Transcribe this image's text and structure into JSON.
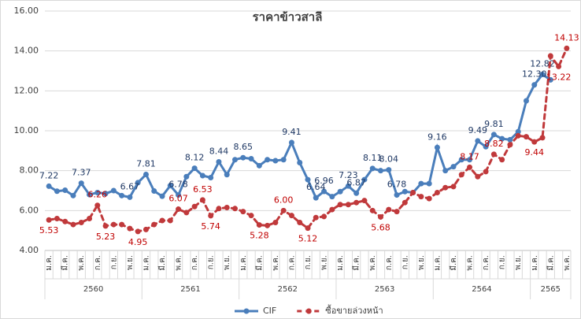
{
  "chart_data": {
    "type": "line",
    "title": "ราคาข้าวสาลี",
    "categories": [
      "ม.ค.",
      null,
      "มี.ค.",
      null,
      "พ.ค.",
      null,
      "ก.ค.",
      null,
      "ก.ย.",
      null,
      "พ.ย.",
      null,
      "ม.ค.",
      null,
      "มี.ค.",
      null,
      "พ.ค.",
      null,
      "ก.ค.",
      null,
      "ก.ย.",
      null,
      "พ.ย.",
      null,
      "ม.ค.",
      null,
      "มี.ค.",
      null,
      "พ.ค.",
      null,
      "ก.ค.",
      null,
      "ก.ย.",
      null,
      "พ.ย.",
      null,
      "ม.ค.",
      null,
      "มี.ค.",
      null,
      "พ.ค.",
      null,
      "ก.ค.",
      null,
      "ก.ย.",
      null,
      "พ.ย.",
      null,
      "ม.ค.",
      null,
      "มี.ค.",
      null,
      "พ.ค.",
      null,
      "ก.ค.",
      null,
      "ก.ย.",
      null,
      "พ.ย.",
      null,
      "ม.ค.",
      null,
      "มี.ค.",
      null,
      "พ.ค."
    ],
    "years": [
      "2560",
      "2561",
      "2562",
      "2563",
      "2564",
      "2565"
    ],
    "series": [
      {
        "name": "CIF",
        "color": "#4a7ebb",
        "label_color": "#1f3864",
        "dashed": false,
        "values": [
          7.22,
          6.97,
          7.02,
          6.75,
          7.37,
          6.8,
          6.9,
          6.85,
          7.0,
          6.75,
          6.67,
          7.4,
          7.81,
          6.98,
          6.72,
          7.25,
          6.78,
          7.7,
          8.12,
          7.75,
          7.65,
          8.44,
          7.8,
          8.55,
          8.65,
          8.6,
          8.25,
          8.55,
          8.5,
          8.55,
          9.41,
          8.4,
          7.55,
          6.64,
          6.96,
          6.7,
          6.95,
          7.23,
          6.87,
          7.55,
          8.11,
          8.0,
          8.04,
          6.78,
          6.95,
          6.9,
          7.35,
          7.35,
          9.16,
          8.0,
          8.2,
          8.55,
          8.55,
          9.49,
          9.2,
          9.81,
          9.6,
          9.55,
          9.95,
          11.5,
          12.3,
          12.82,
          12.55,
          null,
          null
        ],
        "value_labels": [
          "7.22",
          null,
          null,
          null,
          "7.37",
          null,
          null,
          null,
          null,
          null,
          "6.67",
          null,
          "7.81",
          null,
          null,
          null,
          "6.78",
          null,
          "8.12",
          null,
          null,
          "8.44",
          null,
          null,
          "8.65",
          null,
          null,
          null,
          null,
          null,
          "9.41",
          null,
          null,
          "6.64",
          "6.96",
          null,
          null,
          "7.23",
          "6.87",
          null,
          "8.11",
          null,
          "8.04",
          "6.78",
          null,
          null,
          null,
          null,
          "9.16",
          null,
          null,
          null,
          null,
          "9.49",
          null,
          "9.81",
          null,
          null,
          null,
          null,
          "12.30",
          "12.82",
          null,
          null,
          null
        ]
      },
      {
        "name": "ซื้อขายล่วงหน้า",
        "color": "#c0393b",
        "label_color": "#c00000",
        "dashed": true,
        "values": [
          5.53,
          5.6,
          5.45,
          5.3,
          5.4,
          5.6,
          6.26,
          5.23,
          5.3,
          5.3,
          5.1,
          4.95,
          5.05,
          5.3,
          5.5,
          5.5,
          6.07,
          5.9,
          6.2,
          6.53,
          5.74,
          6.1,
          6.15,
          6.1,
          5.95,
          5.75,
          5.28,
          5.25,
          5.4,
          6.0,
          5.75,
          5.4,
          5.12,
          5.65,
          5.7,
          6.05,
          6.3,
          6.3,
          6.4,
          6.5,
          6.0,
          5.68,
          6.05,
          5.95,
          6.4,
          6.9,
          6.7,
          6.6,
          6.9,
          7.15,
          7.2,
          7.8,
          8.17,
          7.7,
          7.95,
          8.82,
          8.55,
          9.3,
          9.75,
          9.7,
          9.44,
          9.65,
          13.75,
          13.22,
          14.13
        ],
        "value_labels": [
          "5.53",
          null,
          null,
          null,
          null,
          null,
          "6.26",
          "5.23",
          null,
          null,
          null,
          "4.95",
          null,
          null,
          null,
          null,
          "6.07",
          null,
          null,
          "6.53",
          "5.74",
          null,
          null,
          null,
          null,
          null,
          "5.28",
          null,
          null,
          "6.00",
          null,
          null,
          "5.12",
          null,
          null,
          null,
          null,
          null,
          null,
          null,
          null,
          "5.68",
          null,
          null,
          null,
          null,
          null,
          null,
          null,
          null,
          null,
          null,
          "8.17",
          null,
          null,
          "8.82",
          null,
          null,
          null,
          null,
          "9.44",
          null,
          null,
          "13.22",
          "14.13"
        ]
      }
    ],
    "ylim": [
      4,
      16
    ],
    "yticks": [
      {
        "value": 4,
        "label": "4.00"
      },
      {
        "value": 6,
        "label": "6.00"
      },
      {
        "value": 8,
        "label": "8.00"
      },
      {
        "value": 10,
        "label": "10.00"
      },
      {
        "value": 12,
        "label": "12.00"
      },
      {
        "value": 14,
        "label": "14.00"
      },
      {
        "value": 16,
        "label": "16.00"
      }
    ],
    "grid": true,
    "legend": "bottom"
  }
}
